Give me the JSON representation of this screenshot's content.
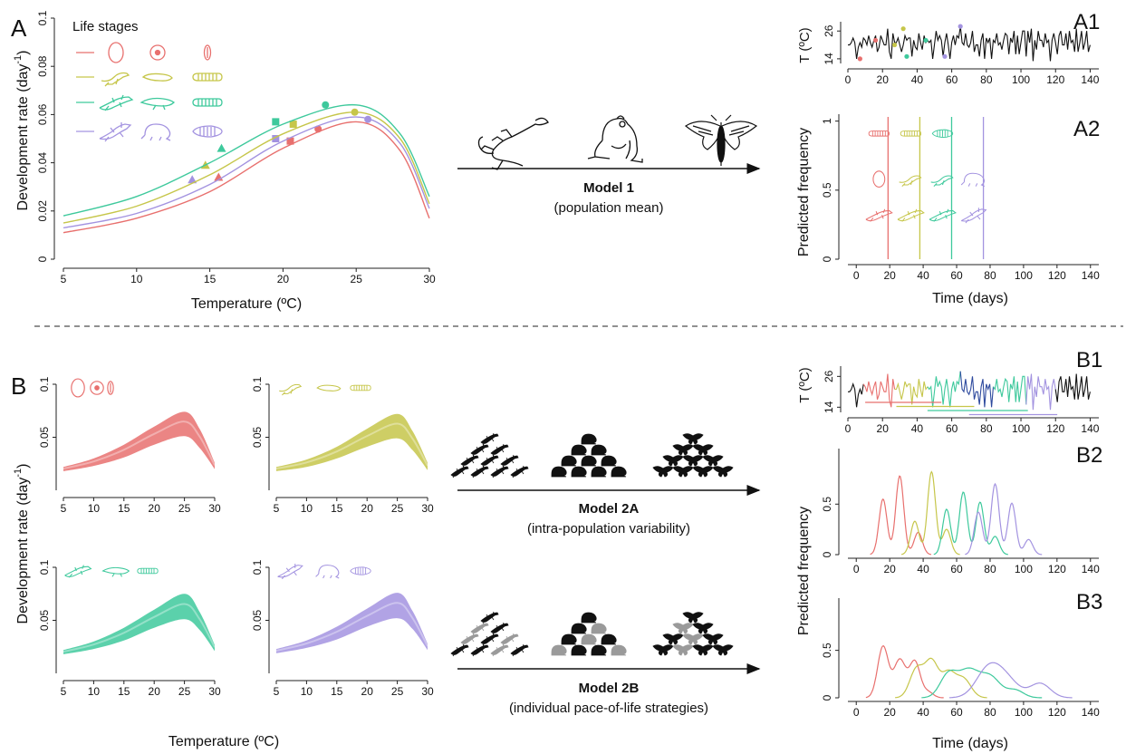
{
  "panel_labels": {
    "A": "A",
    "A1": "A1",
    "A2": "A2",
    "B": "B",
    "B1": "B1",
    "B2": "B2",
    "B3": "B3"
  },
  "colors": {
    "egg": "#e8706e",
    "larva": "#c6c64a",
    "nymph": "#3ec99c",
    "adult": "#a393e0"
  },
  "icons": {
    "egg_stage": [
      "egg-icon",
      "frog-egg-icon",
      "insect-egg-icon"
    ],
    "larva_stage": [
      "lizard-hatchling-icon",
      "tadpole-icon",
      "caterpillar-icon"
    ],
    "juvenile_stage": [
      "juvenile-lizard-icon",
      "tadpole-legs-icon",
      "larva-icon"
    ],
    "adult_stage": [
      "adult-lizard-icon",
      "frog-icon",
      "pupa-icon"
    ],
    "organisms": [
      "lizard-icon",
      "frog-icon",
      "moth-icon"
    ]
  },
  "models": {
    "m1": {
      "name": "Model 1",
      "desc": "(population mean)"
    },
    "m2a": {
      "name": "Model 2A",
      "desc": "(intra-population variability)"
    },
    "m2b": {
      "name": "Model 2B",
      "desc": "(individual pace-of-life strategies)"
    }
  },
  "chart_data": [
    {
      "id": "A",
      "type": "line",
      "legend_title": "Life stages",
      "xlabel": "Temperature (ºC)",
      "ylabel": "Development rate (day",
      "ylabel_sup": "-1",
      "ylabel_end": ")",
      "xlim": [
        5,
        30
      ],
      "ylim": [
        0,
        0.1
      ],
      "xticks": [
        "5",
        "10",
        "15",
        "20",
        "25",
        "30"
      ],
      "yticks": [
        "0",
        "0.02",
        "0.04",
        "0.06",
        "0.08",
        "0.1"
      ],
      "series": [
        {
          "color": "#e8706e",
          "x": [
            5,
            10,
            15,
            20,
            25,
            28,
            30
          ],
          "y": [
            0.011,
            0.017,
            0.028,
            0.046,
            0.057,
            0.045,
            0.017
          ],
          "points": [
            {
              "x": 15.6,
              "y": 0.034,
              "m": "triangle"
            },
            {
              "x": 20.5,
              "y": 0.049,
              "m": "square"
            },
            {
              "x": 22.4,
              "y": 0.054,
              "m": "circle"
            }
          ]
        },
        {
          "color": "#a393e0",
          "x": [
            5,
            10,
            15,
            20,
            25,
            28,
            30
          ],
          "y": [
            0.013,
            0.019,
            0.031,
            0.049,
            0.059,
            0.048,
            0.021
          ],
          "points": [
            {
              "x": 13.8,
              "y": 0.033,
              "m": "triangle"
            },
            {
              "x": 19.5,
              "y": 0.05,
              "m": "square"
            },
            {
              "x": 25.8,
              "y": 0.058,
              "m": "circle"
            }
          ]
        },
        {
          "color": "#c6c64a",
          "x": [
            5,
            10,
            15,
            20,
            25,
            28,
            30
          ],
          "y": [
            0.015,
            0.022,
            0.035,
            0.052,
            0.061,
            0.05,
            0.023
          ],
          "points": [
            {
              "x": 14.7,
              "y": 0.039,
              "m": "triangle"
            },
            {
              "x": 20.7,
              "y": 0.056,
              "m": "square"
            },
            {
              "x": 24.9,
              "y": 0.061,
              "m": "circle"
            }
          ]
        },
        {
          "color": "#3ec99c",
          "x": [
            5,
            10,
            15,
            20,
            25,
            28,
            30
          ],
          "y": [
            0.018,
            0.026,
            0.04,
            0.056,
            0.064,
            0.052,
            0.026
          ],
          "points": [
            {
              "x": 15.8,
              "y": 0.046,
              "m": "triangle"
            },
            {
              "x": 19.5,
              "y": 0.057,
              "m": "square"
            },
            {
              "x": 22.9,
              "y": 0.064,
              "m": "circle"
            }
          ]
        }
      ]
    },
    {
      "id": "A1",
      "type": "line",
      "ylabel": "T (ºC)",
      "xlim": [
        0,
        145
      ],
      "ylim": [
        12,
        30
      ],
      "xticks": [
        "0",
        "20",
        "40",
        "60",
        "80",
        "100",
        "120",
        "140"
      ],
      "yticks": [
        "14",
        "26"
      ],
      "temperature": [
        20,
        20,
        21,
        23,
        21,
        14,
        19,
        21,
        19,
        23,
        22,
        20,
        24,
        21,
        19,
        22,
        24,
        17,
        19,
        24,
        22,
        20,
        20,
        27,
        17,
        14,
        25,
        21,
        21,
        23,
        20,
        17,
        20,
        24,
        22,
        23,
        23,
        15,
        22,
        19,
        18,
        25,
        21,
        18,
        24,
        21,
        22,
        21,
        22,
        14,
        20,
        26,
        22,
        24,
        22,
        15,
        21,
        25,
        20,
        14,
        21,
        24,
        20,
        24,
        23,
        28,
        21,
        20,
        25,
        20,
        19,
        21,
        26,
        17,
        20,
        20,
        15,
        22,
        25,
        14,
        23,
        21,
        23,
        14,
        22,
        21,
        25,
        20,
        21,
        18,
        22,
        25,
        24,
        16,
        23,
        21,
        26,
        16,
        24,
        16,
        21,
        26,
        26,
        15,
        26,
        21,
        27,
        13,
        22,
        18,
        26,
        22,
        22,
        19,
        25,
        21,
        22,
        13,
        22,
        25,
        21,
        16,
        24,
        26,
        20,
        20,
        25,
        18,
        26,
        21,
        22,
        17,
        27,
        17,
        21,
        26,
        18,
        21,
        26,
        17,
        20
      ],
      "markers": [
        {
          "x": 7,
          "y": 14,
          "c": "#e8706e"
        },
        {
          "x": 16,
          "y": 22,
          "c": "#e8706e"
        },
        {
          "x": 27,
          "y": 20,
          "c": "#c6c64a"
        },
        {
          "x": 32,
          "y": 27,
          "c": "#c6c64a"
        },
        {
          "x": 34,
          "y": 15,
          "c": "#3ec99c"
        },
        {
          "x": 45,
          "y": 22,
          "c": "#3ec99c"
        },
        {
          "x": 56,
          "y": 15,
          "c": "#a393e0"
        },
        {
          "x": 65,
          "y": 28,
          "c": "#a393e0"
        }
      ]
    },
    {
      "id": "A2",
      "type": "scatter",
      "ylabel": "Predicted frequency",
      "xlabel": "Time (days)",
      "xlim": [
        -5,
        145
      ],
      "ylim": [
        0,
        1.05
      ],
      "xticks": [
        "0",
        "20",
        "40",
        "60",
        "80",
        "100",
        "120",
        "140"
      ],
      "yticks": [
        "0",
        "0.5",
        "1"
      ],
      "events": [
        {
          "x": 19,
          "c": "#e8706e"
        },
        {
          "x": 38,
          "c": "#c6c64a"
        },
        {
          "x": 57,
          "c": "#3ec99c"
        },
        {
          "x": 76,
          "c": "#a393e0"
        }
      ]
    },
    {
      "id": "B_grid",
      "type": "area",
      "xlabel": "Temperature (ºC)",
      "ylabel": "Development rate (day",
      "ylabel_sup": "-1",
      "ylabel_end": ")",
      "xlim": [
        5,
        30
      ],
      "ylim": [
        0,
        0.1
      ],
      "xticks": [
        "5",
        "10",
        "15",
        "20",
        "25",
        "30"
      ],
      "yticks": [
        "0.1",
        "0.05"
      ],
      "panels": [
        {
          "color": "#e8706e",
          "x": [
            5,
            10,
            15,
            20,
            25,
            27.5,
            30
          ],
          "lower": [
            0.018,
            0.023,
            0.031,
            0.043,
            0.051,
            0.04,
            0.02
          ],
          "upper": [
            0.022,
            0.03,
            0.043,
            0.06,
            0.074,
            0.058,
            0.026
          ]
        },
        {
          "color": "#c6c64a",
          "x": [
            5,
            10,
            15,
            20,
            25,
            27.5,
            30
          ],
          "lower": [
            0.018,
            0.022,
            0.03,
            0.041,
            0.049,
            0.038,
            0.019
          ],
          "upper": [
            0.022,
            0.029,
            0.041,
            0.058,
            0.072,
            0.056,
            0.026
          ]
        },
        {
          "color": "#3ec99c",
          "x": [
            5,
            10,
            15,
            20,
            25,
            27.5,
            30
          ],
          "lower": [
            0.018,
            0.023,
            0.031,
            0.043,
            0.051,
            0.041,
            0.021
          ],
          "upper": [
            0.022,
            0.03,
            0.043,
            0.06,
            0.075,
            0.058,
            0.027
          ]
        },
        {
          "color": "#a393e0",
          "x": [
            5,
            10,
            15,
            20,
            25,
            27.5,
            30
          ],
          "lower": [
            0.019,
            0.024,
            0.032,
            0.044,
            0.052,
            0.042,
            0.022
          ],
          "upper": [
            0.023,
            0.031,
            0.044,
            0.061,
            0.076,
            0.059,
            0.028
          ]
        }
      ]
    },
    {
      "id": "B1",
      "type": "line",
      "ylabel": "T (ºC)",
      "xlim": [
        0,
        145
      ],
      "ylim": [
        12,
        30
      ],
      "xticks": [
        "0",
        "20",
        "40",
        "60",
        "80",
        "100",
        "120",
        "140"
      ],
      "yticks": [
        "14",
        "26"
      ],
      "ranges": [
        {
          "x0": 10,
          "x1": 54,
          "c": "#e8706e"
        },
        {
          "x0": 28,
          "x1": 73,
          "c": "#c6c64a"
        },
        {
          "x0": 46,
          "x1": 104,
          "c": "#3ec99c"
        },
        {
          "x0": 70,
          "x1": 121,
          "c": "#a393e0"
        }
      ]
    },
    {
      "id": "B2",
      "type": "line",
      "ylabel": "Predicted frequency",
      "xlim": [
        -5,
        145
      ],
      "ylim": [
        0,
        1.05
      ],
      "xticks": [
        "0",
        "20",
        "40",
        "60",
        "80",
        "100",
        "120",
        "140"
      ],
      "yticks": [
        "0",
        "0.5"
      ],
      "series": [
        {
          "c": "#e8706e",
          "peaks": [
            [
              16,
              0.55,
              2.4
            ],
            [
              26,
              0.78,
              2.4
            ],
            [
              37,
              0.22,
              2.5
            ]
          ]
        },
        {
          "c": "#c6c64a",
          "peaks": [
            [
              35,
              0.33,
              2.5
            ],
            [
              45,
              0.82,
              2.4
            ],
            [
              54,
              0.25,
              2.5
            ]
          ]
        },
        {
          "c": "#3ec99c",
          "peaks": [
            [
              54,
              0.45,
              2.4
            ],
            [
              64,
              0.62,
              2.4
            ],
            [
              74,
              0.52,
              2.4
            ],
            [
              83,
              0.18,
              2.5
            ]
          ]
        },
        {
          "c": "#a393e0",
          "peaks": [
            [
              73,
              0.42,
              2.5
            ],
            [
              83,
              0.7,
              2.4
            ],
            [
              93,
              0.51,
              2.4
            ],
            [
              103,
              0.15,
              2.5
            ]
          ]
        }
      ]
    },
    {
      "id": "B3",
      "type": "line",
      "ylabel": "Predicted frequency",
      "xlabel": "Time (days)",
      "xlim": [
        -5,
        145
      ],
      "ylim": [
        0,
        1.05
      ],
      "xticks": [
        "0",
        "20",
        "40",
        "60",
        "80",
        "100",
        "120",
        "140"
      ],
      "yticks": [
        "0",
        "0.5"
      ],
      "series": [
        {
          "c": "#e8706e",
          "peaks": [
            [
              16,
              0.54,
              3.2
            ],
            [
              26,
              0.4,
              3.5
            ],
            [
              35,
              0.38,
              3.2
            ],
            [
              43,
              0.06,
              3
            ]
          ]
        },
        {
          "c": "#c6c64a",
          "peaks": [
            [
              36,
              0.3,
              4
            ],
            [
              45,
              0.38,
              4
            ],
            [
              55,
              0.25,
              4
            ],
            [
              64,
              0.2,
              4.5
            ]
          ]
        },
        {
          "c": "#3ec99c",
          "peaks": [
            [
              55,
              0.24,
              5
            ],
            [
              67,
              0.28,
              6
            ],
            [
              80,
              0.22,
              6
            ],
            [
              95,
              0.08,
              5
            ]
          ]
        },
        {
          "c": "#a393e0",
          "peaks": [
            [
              78,
              0.24,
              7
            ],
            [
              88,
              0.22,
              8
            ],
            [
              110,
              0.15,
              6
            ]
          ]
        }
      ]
    }
  ]
}
